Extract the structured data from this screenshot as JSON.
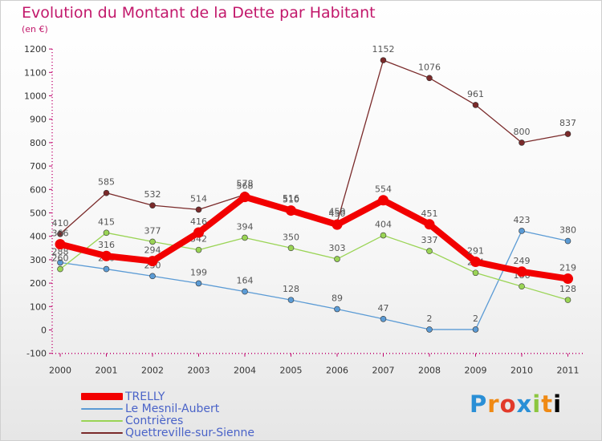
{
  "header": {
    "title": "Evolution du Montant de la Dette par Habitant",
    "unit": "(en €)"
  },
  "brand": {
    "logo_text": "Proxiti"
  },
  "chart_data": {
    "type": "line",
    "title": "Evolution du Montant de la Dette par Habitant",
    "subtitle": "(en €)",
    "xlabel": "",
    "ylabel": "",
    "ylim": [
      -100,
      1200
    ],
    "ytick_step": 100,
    "grid": false,
    "legend_position": "bottom-left",
    "x": [
      "2000",
      "2001",
      "2002",
      "2003",
      "2004",
      "2005",
      "2006",
      "2007",
      "2008",
      "2009",
      "2010",
      "2011"
    ],
    "series": [
      {
        "name": "TRELLY",
        "color": "#f20000",
        "bold": true,
        "values": [
          366,
          316,
          294,
          416,
          568,
          510,
          450,
          554,
          451,
          291,
          249,
          219
        ]
      },
      {
        "name": "Le Mesnil-Aubert",
        "color": "#5b9bd5",
        "bold": false,
        "values": [
          288,
          260,
          230,
          199,
          164,
          128,
          89,
          47,
          2,
          2,
          423,
          380
        ]
      },
      {
        "name": "Contrières",
        "color": "#9ad455",
        "bold": false,
        "values": [
          260,
          415,
          377,
          342,
          394,
          350,
          303,
          404,
          337,
          244,
          186,
          128
        ]
      },
      {
        "name": "Quettreville-sur-Sienne",
        "color": "#7a2a2a",
        "bold": false,
        "values": [
          410,
          585,
          532,
          514,
          578,
          516,
          459,
          1152,
          1076,
          961,
          800,
          837
        ]
      }
    ]
  }
}
